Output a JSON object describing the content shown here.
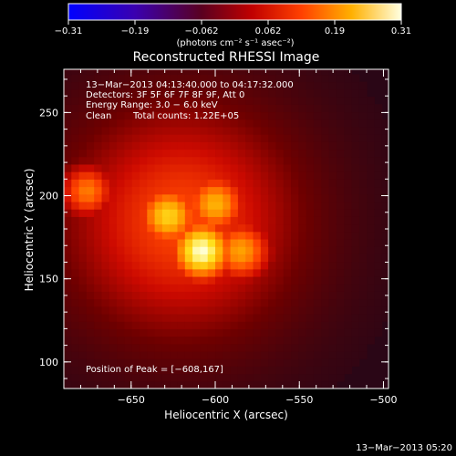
{
  "chart_data": {
    "type": "heatmap",
    "title": "Reconstructed RHESSI Image",
    "xlabel": "Heliocentric X (arcsec)",
    "ylabel": "Heliocentric Y (arcsec)",
    "xlim": [
      -690,
      -497
    ],
    "ylim": [
      84,
      276
    ],
    "x_ticks": [
      {
        "value": -650,
        "label": "−650"
      },
      {
        "value": -600,
        "label": "−600"
      },
      {
        "value": -550,
        "label": "−550"
      },
      {
        "value": -500,
        "label": "−500"
      }
    ],
    "y_ticks": [
      {
        "value": 100,
        "label": "100"
      },
      {
        "value": 150,
        "label": "150"
      },
      {
        "value": 200,
        "label": "200"
      },
      {
        "value": 250,
        "label": "250"
      }
    ],
    "colorbar": {
      "min": -0.31,
      "max": 0.31,
      "ticks": [
        "−0.31",
        "−0.19",
        "−0.062",
        "0.062",
        "0.19",
        "0.31"
      ],
      "unit_label": "(photons cm⁻² s⁻¹ asec⁻²)"
    },
    "annotations": [
      "13−Mar−2013 04:13:40.000 to 04:17:32.000",
      "Detectors: 3F 5F 6F 7F 8F 9F, Att 0",
      "Energy Range: 3.0 − 6.0 keV",
      "Clean"
    ],
    "total_counts_label": "Total counts: 1.22E+05",
    "peak_label": "Position of Peak = [−608,167]",
    "sources": [
      {
        "x": -608,
        "y": 167,
        "intensity": 0.31
      },
      {
        "x": -628,
        "y": 188,
        "intensity": 0.27
      },
      {
        "x": -600,
        "y": 195,
        "intensity": 0.25
      },
      {
        "x": -585,
        "y": 167,
        "intensity": 0.24
      },
      {
        "x": -676,
        "y": 203,
        "intensity": 0.22
      },
      {
        "x": -650,
        "y": 178,
        "intensity": 0.12
      }
    ],
    "grid": false
  },
  "footer": {
    "timestamp": "13−Mar−2013 05:20"
  }
}
